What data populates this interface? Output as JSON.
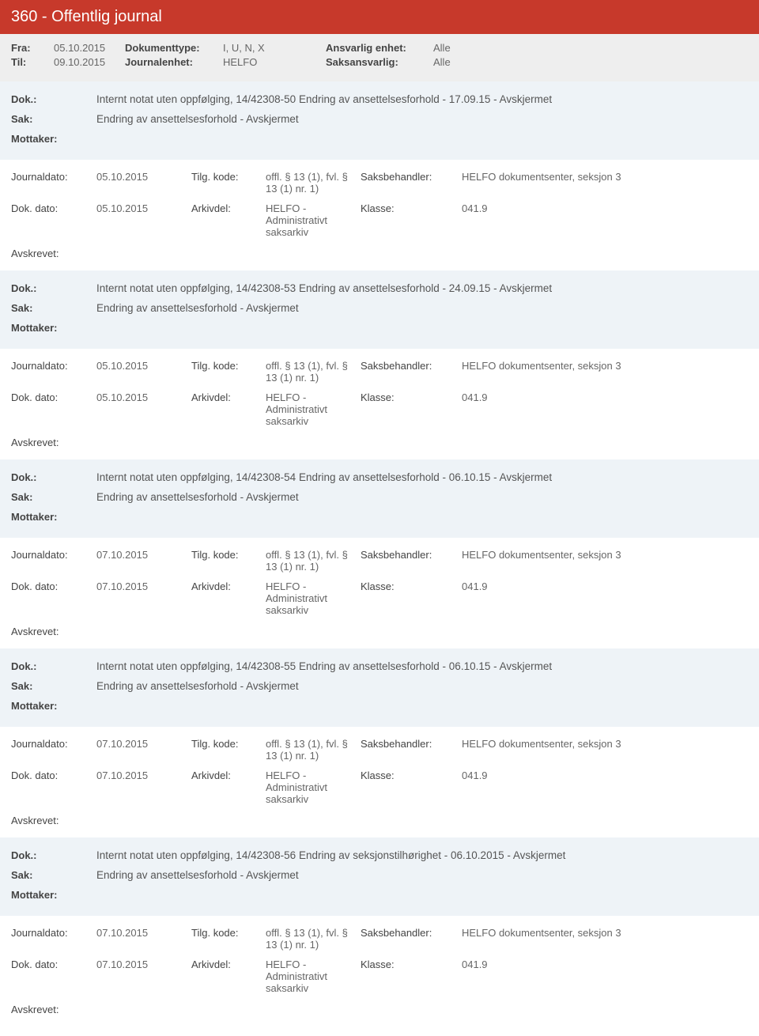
{
  "header": {
    "title": "360 - Offentlig journal"
  },
  "filter": {
    "fra_label": "Fra:",
    "fra_value": "05.10.2015",
    "til_label": "Til:",
    "til_value": "09.10.2015",
    "dokumenttype_label": "Dokumenttype:",
    "dokumenttype_value": "I, U, N, X",
    "journalenhet_label": "Journalenhet:",
    "journalenhet_value": "HELFO",
    "ansvarlig_label": "Ansvarlig enhet:",
    "ansvarlig_value": "Alle",
    "saksansvarlig_label": "Saksansvarlig:",
    "saksansvarlig_value": "Alle"
  },
  "labels": {
    "dok": "Dok.:",
    "sak": "Sak:",
    "mottaker": "Mottaker:",
    "journaldato": "Journaldato:",
    "dokdato": "Dok. dato:",
    "tilgkode": "Tilg. kode:",
    "arkivdel": "Arkivdel:",
    "saksbehandler": "Saksbehandler:",
    "klasse": "Klasse:",
    "avskrevet": "Avskrevet:"
  },
  "common": {
    "tilgkode_value": "offl. § 13 (1), fvl. § 13 (1) nr. 1)",
    "arkivdel_value": "HELFO - Administrativt saksarkiv",
    "saksbehandler_value": "HELFO dokumentsenter, seksjon 3",
    "klasse_value": "041.9",
    "sak_value": "Endring av ansettelsesforhold - Avskjermet"
  },
  "entries": [
    {
      "dok": "Internt notat uten oppfølging, 14/42308-50 Endring av ansettelsesforhold - 17.09.15 - Avskjermet",
      "journaldato": "05.10.2015",
      "dokdato": "05.10.2015"
    },
    {
      "dok": "Internt notat uten oppfølging, 14/42308-53 Endring av ansettelsesforhold  - 24.09.15 - Avskjermet",
      "journaldato": "05.10.2015",
      "dokdato": "05.10.2015"
    },
    {
      "dok": "Internt notat uten oppfølging, 14/42308-54 Endring av ansettelsesforhold - 06.10.15 - Avskjermet",
      "journaldato": "07.10.2015",
      "dokdato": "07.10.2015"
    },
    {
      "dok": "Internt notat uten oppfølging, 14/42308-55 Endring av ansettelsesforhold - 06.10.15 - Avskjermet",
      "journaldato": "07.10.2015",
      "dokdato": "07.10.2015"
    },
    {
      "dok": "Internt notat uten oppfølging, 14/42308-56 Endring av seksjonstilhørighet - 06.10.2015 - Avskjermet",
      "journaldato": "07.10.2015",
      "dokdato": "07.10.2015"
    }
  ]
}
